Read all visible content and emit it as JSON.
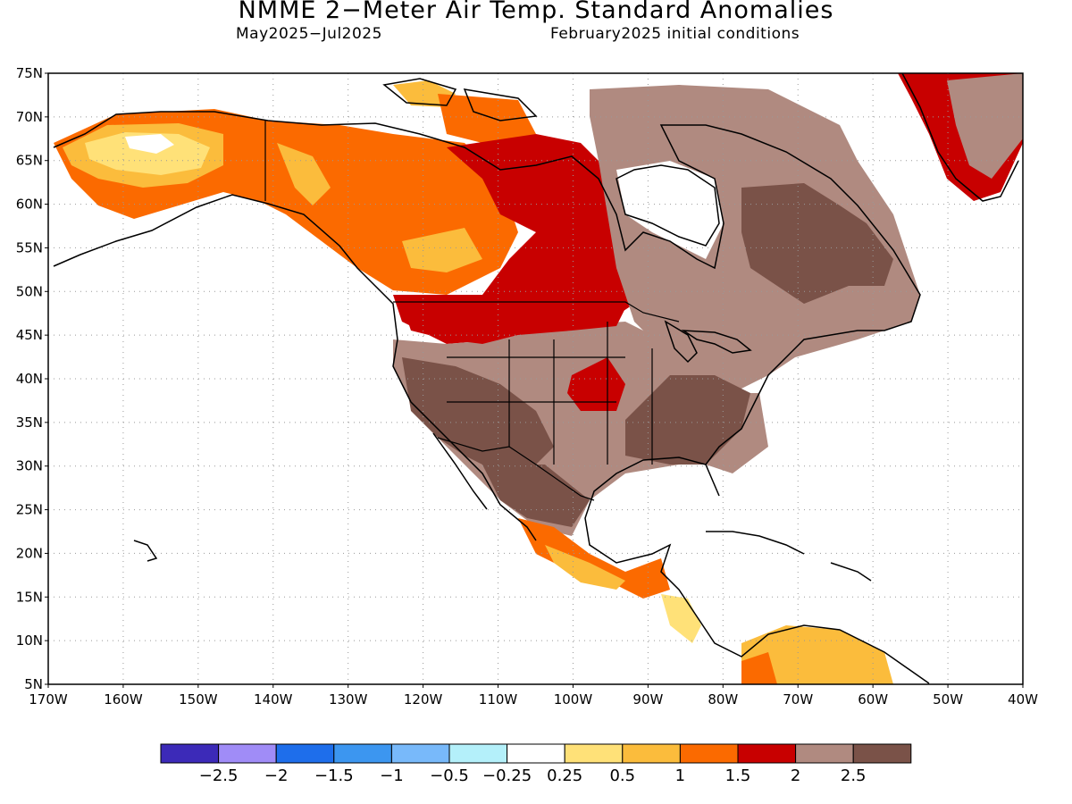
{
  "title": "NMME 2−Meter Air Temp. Standard Anomalies",
  "subtitle_left": "May2025−Jul2025",
  "subtitle_right": "February2025 initial conditions",
  "map": {
    "lat_labels": [
      "75N",
      "70N",
      "65N",
      "60N",
      "55N",
      "50N",
      "45N",
      "40N",
      "35N",
      "30N",
      "25N",
      "20N",
      "15N",
      "10N",
      "5N"
    ],
    "lon_labels": [
      "170W",
      "160W",
      "150W",
      "140W",
      "130W",
      "120W",
      "110W",
      "100W",
      "90W",
      "80W",
      "70W",
      "60W",
      "50W",
      "40W"
    ],
    "lat_range": [
      5,
      75
    ],
    "lon_range": [
      -170,
      -40
    ],
    "grid": "dotted"
  },
  "legend": {
    "colors": [
      "#3c2ab8",
      "#a08cf7",
      "#1e6eeb",
      "#3c96f0",
      "#78b9fa",
      "#b4f0fa",
      "#ffffff",
      "#ffe178",
      "#fbbc3c",
      "#fb6a00",
      "#c80000",
      "#b08a80",
      "#7a5248"
    ],
    "labels": [
      "−2.5",
      "−2",
      "−1.5",
      "−1",
      "−0.5",
      "−0.25",
      "0.25",
      "0.5",
      "1",
      "1.5",
      "2",
      "2.5"
    ]
  }
}
